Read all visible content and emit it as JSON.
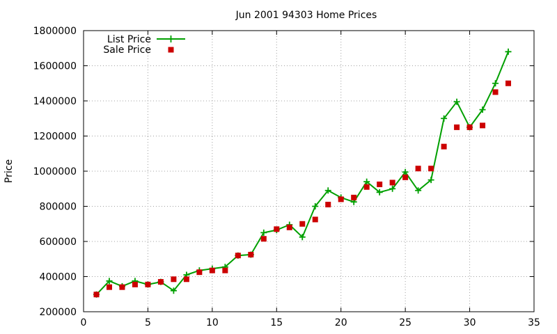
{
  "chart_data": {
    "type": "line",
    "title": "Jun 2001 94303 Home Prices",
    "xlabel": "",
    "ylabel": "Price",
    "xlim": [
      0,
      35
    ],
    "ylim": [
      200000,
      1800000
    ],
    "xticks": [
      "0",
      "5",
      "10",
      "15",
      "20",
      "25",
      "30",
      "35"
    ],
    "yticks": [
      "200000",
      "400000",
      "600000",
      "800000",
      "1000000",
      "1200000",
      "1400000",
      "1600000",
      "1800000"
    ],
    "grid": true,
    "legend_position": "top-left",
    "series": [
      {
        "name": "List Price",
        "style": "line-with-plus-markers",
        "color": "#00a000",
        "x": [
          1,
          2,
          3,
          4,
          5,
          6,
          7,
          8,
          9,
          10,
          11,
          12,
          13,
          14,
          15,
          16,
          17,
          18,
          19,
          20,
          21,
          22,
          23,
          24,
          25,
          26,
          27,
          28,
          29,
          30,
          31,
          32,
          33
        ],
        "y": [
          298000,
          375000,
          345000,
          375000,
          355000,
          370000,
          320000,
          410000,
          435000,
          445000,
          455000,
          520000,
          525000,
          650000,
          665000,
          695000,
          625000,
          800000,
          890000,
          850000,
          825000,
          940000,
          880000,
          900000,
          995000,
          890000,
          950000,
          1300000,
          1395000,
          1250000,
          1350000,
          1500000,
          1680000
        ]
      },
      {
        "name": "Sale Price",
        "style": "square-markers",
        "color": "#cc0000",
        "x": [
          1,
          2,
          3,
          4,
          5,
          6,
          7,
          8,
          9,
          10,
          11,
          12,
          13,
          14,
          15,
          16,
          17,
          18,
          19,
          20,
          21,
          22,
          23,
          24,
          25,
          26,
          27,
          28,
          29,
          30,
          31,
          32,
          33
        ],
        "y": [
          298000,
          340000,
          340000,
          355000,
          355000,
          370000,
          385000,
          385000,
          425000,
          435000,
          435000,
          520000,
          525000,
          615000,
          670000,
          680000,
          700000,
          725000,
          810000,
          840000,
          850000,
          910000,
          925000,
          935000,
          965000,
          1015000,
          1015000,
          1140000,
          1250000,
          1250000,
          1260000,
          1450000,
          1500000
        ]
      }
    ]
  }
}
